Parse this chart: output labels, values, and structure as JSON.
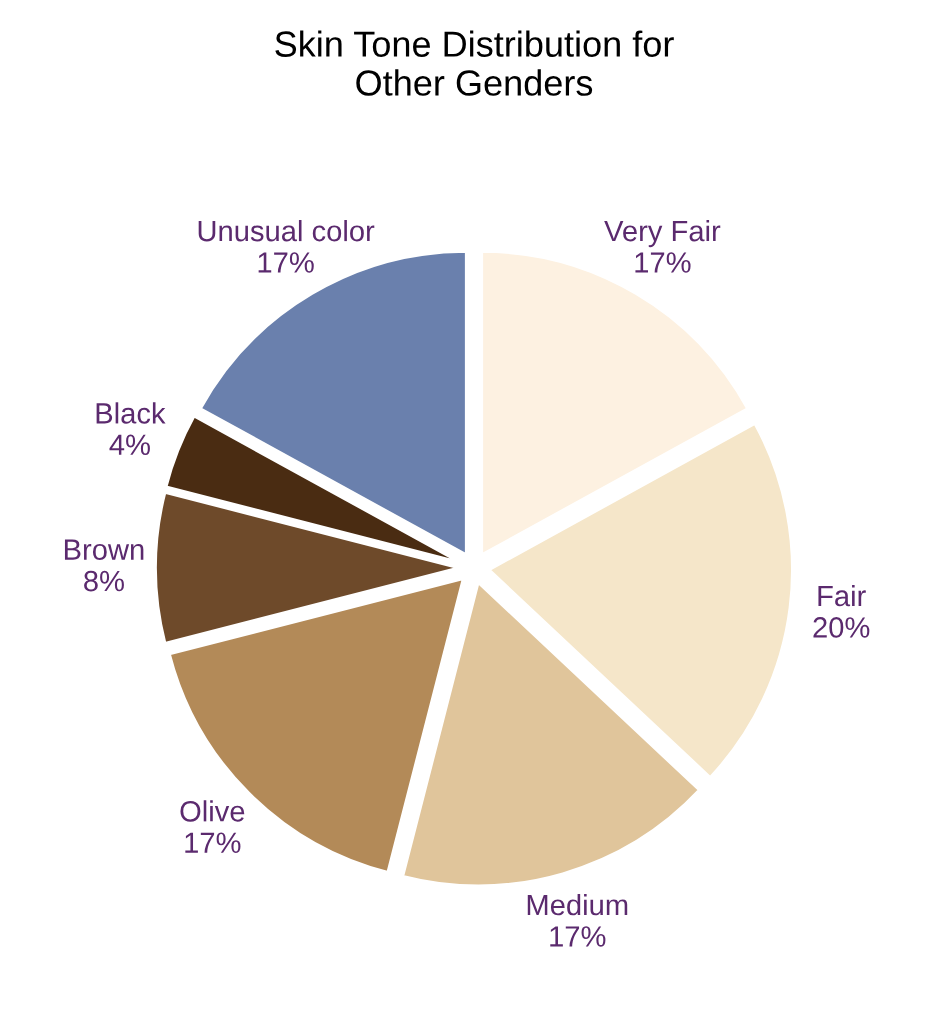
{
  "chart_data": {
    "type": "pie",
    "title": "Skin Tone Distribution for\nOther Genders",
    "categories": [
      "Very Fair",
      "Fair",
      "Medium",
      "Olive",
      "Brown",
      "Black",
      "Unusual color"
    ],
    "values": [
      17,
      20,
      17,
      17,
      8,
      4,
      17
    ],
    "value_labels": [
      "17%",
      "20%",
      "17%",
      "17%",
      "8%",
      "4%",
      "17%"
    ],
    "colors": [
      "#fdf1e1",
      "#f5e6c9",
      "#e0c59b",
      "#b38a58",
      "#6e4a2a",
      "#4a2c12",
      "#6a80ad"
    ],
    "legend": false
  }
}
